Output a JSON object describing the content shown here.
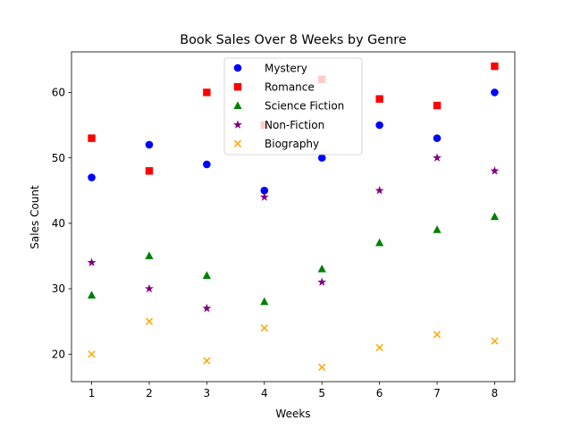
{
  "chart_data": {
    "type": "scatter",
    "title": "Book Sales Over 8 Weeks by Genre",
    "xlabel": "Weeks",
    "ylabel": "Sales Count",
    "x": [
      1,
      2,
      3,
      4,
      5,
      6,
      7,
      8
    ],
    "xlim": [
      0.65,
      8.35
    ],
    "ylim": [
      15.8,
      66.2
    ],
    "xticks": [
      1,
      2,
      3,
      4,
      5,
      6,
      7,
      8
    ],
    "yticks": [
      20,
      30,
      40,
      50,
      60
    ],
    "grid": false,
    "legend_position": "top-center",
    "series": [
      {
        "name": "Mystery",
        "marker": "circle",
        "color": "#0000ff",
        "values": [
          47,
          52,
          49,
          45,
          50,
          55,
          53,
          60
        ]
      },
      {
        "name": "Romance",
        "marker": "square",
        "color": "#ff0000",
        "values": [
          53,
          48,
          60,
          55,
          62,
          59,
          58,
          64
        ]
      },
      {
        "name": "Science Fiction",
        "marker": "triangle",
        "color": "#008000",
        "values": [
          29,
          35,
          32,
          28,
          33,
          37,
          39,
          41
        ]
      },
      {
        "name": "Non-Fiction",
        "marker": "star",
        "color": "#800080",
        "values": [
          34,
          30,
          27,
          44,
          31,
          45,
          50,
          48
        ]
      },
      {
        "name": "Biography",
        "marker": "x",
        "color": "#ffa500",
        "values": [
          20,
          25,
          19,
          24,
          18,
          21,
          23,
          22
        ]
      }
    ]
  }
}
